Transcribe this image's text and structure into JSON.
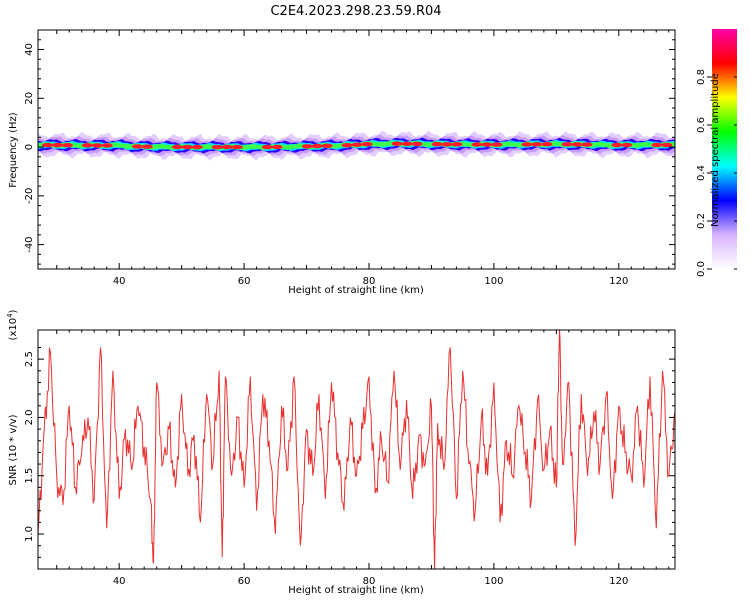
{
  "chart_data": [
    {
      "type": "heatmap",
      "title": "C2E4.2023.298.23.59.R04",
      "xlabel": "Height of straight line (km)",
      "ylabel": "Frequency (Hz)",
      "xlim": [
        27,
        129
      ],
      "ylim": [
        -50,
        48
      ],
      "xticks": [
        40,
        60,
        80,
        100,
        120
      ],
      "yticks": [
        -40,
        -20,
        0,
        20,
        40
      ],
      "colorbar": {
        "label": "Normalized spectral amplitude",
        "range": [
          0,
          1
        ],
        "ticks": [
          0.0,
          0.2,
          0.4,
          0.6,
          0.8
        ],
        "colors": [
          "#ffffff",
          "#d9b3ff",
          "#0000ff",
          "#00ffff",
          "#00ff00",
          "#ffff00",
          "#ff0000",
          "#ff00aa"
        ]
      },
      "band_center": [
        [
          27,
          0.8
        ],
        [
          30,
          0.8
        ],
        [
          35,
          0.7
        ],
        [
          40,
          0.7
        ],
        [
          43,
          0.2
        ],
        [
          50,
          0.0
        ],
        [
          60,
          0.0
        ],
        [
          65,
          0.0
        ],
        [
          70,
          0.3
        ],
        [
          75,
          0.6
        ],
        [
          80,
          1.2
        ],
        [
          85,
          1.4
        ],
        [
          90,
          1.2
        ],
        [
          100,
          1.0
        ],
        [
          105,
          1.1
        ],
        [
          110,
          1.2
        ],
        [
          115,
          1.0
        ],
        [
          120,
          0.8
        ],
        [
          125,
          0.9
        ],
        [
          129,
          0.9
        ]
      ]
    },
    {
      "type": "line",
      "xlabel": "Height of straight line (km)",
      "ylabel": "SNR (10 * v/v)",
      "scale_label": "(x10",
      "scale_exp": "4",
      "scale_close": ")",
      "xlim": [
        27,
        129
      ],
      "ylim": [
        0.7,
        2.75
      ],
      "xticks": [
        40,
        60,
        80,
        100,
        120
      ],
      "yticks": [
        1.0,
        1.5,
        2.0,
        2.5
      ],
      "line_color": "#e8302f",
      "series": [
        {
          "x": [
            27,
            28,
            29,
            30,
            31,
            32,
            33,
            34,
            35,
            36,
            37,
            38,
            39,
            40,
            41,
            42,
            43,
            44,
            45,
            45.5,
            46,
            47,
            48,
            49,
            50,
            51,
            52,
            53,
            54,
            55,
            56,
            56.5,
            57,
            58,
            59,
            60,
            61,
            62,
            63,
            64,
            65,
            66,
            67,
            68,
            69,
            70,
            71,
            72,
            73,
            74,
            75,
            76,
            77,
            78,
            79,
            80,
            81,
            82,
            83,
            84,
            85,
            86,
            87,
            88,
            89,
            90,
            90.5,
            91,
            92,
            93,
            94,
            95,
            96,
            97,
            98,
            99,
            100,
            101,
            102,
            103,
            104,
            105,
            106,
            107,
            108,
            109,
            110,
            110.5,
            111,
            112,
            113,
            114,
            115,
            116,
            117,
            118,
            119,
            120,
            121,
            122,
            123,
            124,
            125,
            126,
            127,
            128,
            129
          ],
          "y": [
            1.0,
            1.9,
            2.55,
            1.5,
            1.25,
            2.1,
            1.4,
            1.7,
            2.0,
            1.3,
            2.6,
            1.05,
            2.4,
            1.3,
            1.9,
            1.55,
            2.1,
            1.75,
            1.3,
            0.75,
            2.3,
            1.6,
            1.9,
            1.4,
            2.2,
            1.5,
            1.85,
            1.1,
            2.2,
            1.6,
            2.4,
            0.8,
            2.35,
            1.5,
            2.0,
            1.4,
            2.35,
            1.2,
            2.2,
            1.8,
            1.0,
            2.1,
            1.55,
            2.35,
            0.9,
            1.9,
            1.5,
            2.2,
            1.3,
            2.3,
            1.7,
            1.2,
            2.0,
            1.5,
            1.9,
            2.35,
            1.35,
            1.8,
            1.45,
            2.4,
            1.55,
            2.15,
            1.3,
            1.85,
            1.6,
            2.1,
            0.7,
            1.95,
            1.55,
            2.6,
            1.3,
            2.4,
            1.6,
            1.2,
            2.0,
            1.5,
            2.3,
            1.1,
            1.8,
            1.5,
            2.1,
            1.7,
            1.3,
            2.15,
            1.55,
            1.9,
            1.4,
            2.75,
            1.6,
            2.3,
            0.9,
            2.2,
            1.5,
            2.05,
            1.6,
            2.2,
            1.3,
            2.1,
            1.7,
            1.5,
            2.1,
            1.4,
            2.35,
            1.05,
            2.4,
            1.5,
            2.05
          ]
        }
      ]
    }
  ]
}
